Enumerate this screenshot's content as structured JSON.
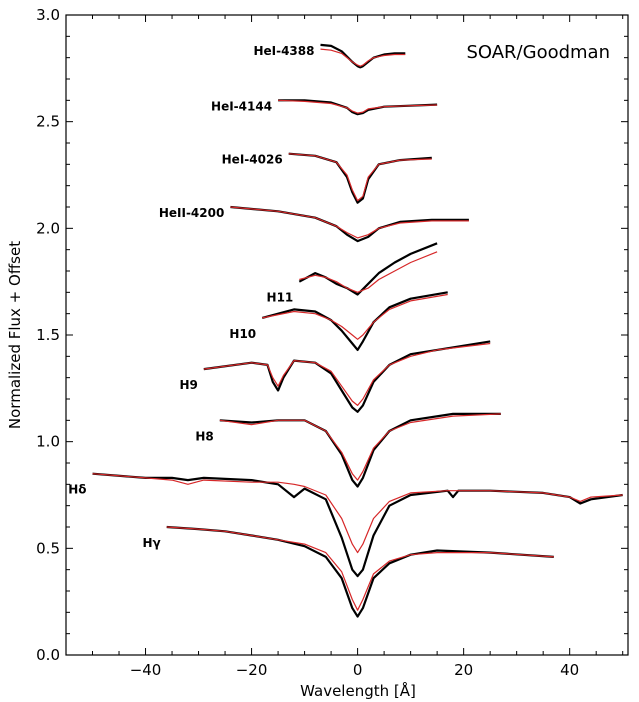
{
  "chart_data": {
    "type": "line",
    "title": "",
    "annotation": "SOAR/Goodman",
    "xlabel": "Wavelength [Å]",
    "ylabel": "Normalized Flux + Offset",
    "xlim": [
      -55,
      51
    ],
    "ylim": [
      0.0,
      3.0
    ],
    "xticks": [
      -40,
      -20,
      0,
      20,
      40
    ],
    "xtick_labels": [
      "−40",
      "−20",
      "0",
      "20",
      "40"
    ],
    "yticks": [
      0.0,
      0.5,
      1.0,
      1.5,
      2.0,
      2.5,
      3.0
    ],
    "ytick_labels": [
      "0.0",
      "0.5",
      "1.0",
      "1.5",
      "2.0",
      "2.5",
      "3.0"
    ],
    "grid": false,
    "series": [
      {
        "name": "HeI-4388",
        "label": "HeI-4388",
        "offset": 2.84,
        "x": [
          -7,
          -5,
          -3,
          -1,
          0,
          0.5,
          1,
          2,
          3,
          5,
          7,
          9
        ],
        "observed": [
          2.86,
          2.855,
          2.83,
          2.78,
          2.76,
          2.755,
          2.76,
          2.78,
          2.8,
          2.815,
          2.82,
          2.82
        ],
        "model": [
          2.84,
          2.835,
          2.82,
          2.78,
          2.765,
          2.76,
          2.765,
          2.785,
          2.8,
          2.81,
          2.815,
          2.815
        ]
      },
      {
        "name": "HeI-4144",
        "label": "HeI-4144",
        "offset": 2.6,
        "x": [
          -15,
          -10,
          -5,
          -2,
          -1,
          0,
          1,
          2,
          5,
          10,
          15
        ],
        "observed": [
          2.6,
          2.6,
          2.59,
          2.565,
          2.545,
          2.535,
          2.54,
          2.555,
          2.57,
          2.575,
          2.58
        ],
        "model": [
          2.6,
          2.595,
          2.585,
          2.565,
          2.55,
          2.54,
          2.545,
          2.56,
          2.57,
          2.575,
          2.578
        ]
      },
      {
        "name": "HeI-4026",
        "label": "HeI-4026",
        "offset": 2.35,
        "x": [
          -13,
          -8,
          -4,
          -2,
          -1,
          0,
          1,
          2,
          4,
          8,
          14
        ],
        "observed": [
          2.35,
          2.34,
          2.31,
          2.24,
          2.17,
          2.12,
          2.14,
          2.23,
          2.3,
          2.32,
          2.33
        ],
        "model": [
          2.35,
          2.34,
          2.31,
          2.25,
          2.18,
          2.13,
          2.15,
          2.24,
          2.3,
          2.32,
          2.325
        ]
      },
      {
        "name": "HeII-4200",
        "label": "HeII-4200",
        "offset": 2.1,
        "x": [
          -24,
          -15,
          -8,
          -4,
          -2,
          0,
          2,
          4,
          8,
          14,
          21
        ],
        "observed": [
          2.1,
          2.08,
          2.05,
          2.01,
          1.97,
          1.94,
          1.96,
          2.0,
          2.03,
          2.04,
          2.04
        ],
        "model": [
          2.1,
          2.08,
          2.05,
          2.01,
          1.98,
          1.955,
          1.97,
          2.0,
          2.025,
          2.035,
          2.035
        ]
      },
      {
        "name": "H11",
        "label": "H11",
        "offset": 1.75,
        "x": [
          -11,
          -8,
          -6,
          -4,
          -2,
          0,
          2,
          4,
          7,
          10,
          15
        ],
        "observed": [
          1.75,
          1.79,
          1.77,
          1.74,
          1.72,
          1.69,
          1.74,
          1.79,
          1.84,
          1.88,
          1.93
        ],
        "model": [
          1.76,
          1.78,
          1.77,
          1.75,
          1.72,
          1.7,
          1.72,
          1.76,
          1.8,
          1.84,
          1.89
        ]
      },
      {
        "name": "H10",
        "label": "H10",
        "offset": 1.6,
        "x": [
          -18,
          -12,
          -8,
          -5,
          -3,
          -1,
          0,
          1,
          3,
          6,
          10,
          17
        ],
        "observed": [
          1.58,
          1.62,
          1.61,
          1.57,
          1.52,
          1.46,
          1.43,
          1.47,
          1.56,
          1.63,
          1.67,
          1.7
        ],
        "model": [
          1.58,
          1.61,
          1.6,
          1.57,
          1.54,
          1.5,
          1.48,
          1.5,
          1.56,
          1.62,
          1.66,
          1.69
        ]
      },
      {
        "name": "H9",
        "label": "H9",
        "offset": 1.35,
        "x": [
          -29,
          -20,
          -17,
          -16,
          -15,
          -14,
          -12,
          -8,
          -5,
          -3,
          -1,
          0,
          1,
          3,
          6,
          10,
          15,
          25
        ],
        "observed": [
          1.34,
          1.37,
          1.36,
          1.28,
          1.24,
          1.3,
          1.38,
          1.37,
          1.32,
          1.24,
          1.16,
          1.14,
          1.17,
          1.28,
          1.36,
          1.41,
          1.43,
          1.47
        ],
        "model": [
          1.34,
          1.37,
          1.36,
          1.3,
          1.26,
          1.31,
          1.38,
          1.37,
          1.33,
          1.26,
          1.19,
          1.17,
          1.2,
          1.29,
          1.36,
          1.4,
          1.43,
          1.46
        ]
      },
      {
        "name": "H8",
        "label": "H8",
        "offset": 1.1,
        "x": [
          -26,
          -20,
          -15,
          -10,
          -6,
          -3,
          -1,
          0,
          1,
          3,
          6,
          10,
          18,
          27
        ],
        "observed": [
          1.1,
          1.09,
          1.1,
          1.1,
          1.05,
          0.94,
          0.82,
          0.79,
          0.83,
          0.96,
          1.05,
          1.1,
          1.13,
          1.13
        ],
        "model": [
          1.1,
          1.08,
          1.1,
          1.1,
          1.05,
          0.95,
          0.85,
          0.82,
          0.86,
          0.97,
          1.05,
          1.09,
          1.12,
          1.13
        ],
        "scale": 1
      },
      {
        "name": "Hδ",
        "label": "Hδ",
        "offset": 0.8,
        "x": [
          -50,
          -40,
          -35,
          -32,
          -29,
          -20,
          -15,
          -12,
          -10,
          -6,
          -3,
          -1,
          0,
          1,
          3,
          6,
          10,
          17,
          18,
          19,
          25,
          35,
          40,
          42,
          44,
          50
        ],
        "observed": [
          0.85,
          0.83,
          0.83,
          0.82,
          0.83,
          0.82,
          0.8,
          0.74,
          0.78,
          0.73,
          0.55,
          0.4,
          0.37,
          0.4,
          0.56,
          0.7,
          0.75,
          0.77,
          0.74,
          0.77,
          0.77,
          0.76,
          0.74,
          0.71,
          0.73,
          0.75
        ],
        "model": [
          0.85,
          0.83,
          0.82,
          0.8,
          0.82,
          0.81,
          0.81,
          0.8,
          0.79,
          0.75,
          0.64,
          0.52,
          0.48,
          0.52,
          0.64,
          0.72,
          0.76,
          0.77,
          0.77,
          0.77,
          0.77,
          0.76,
          0.74,
          0.72,
          0.74,
          0.75
        ]
      },
      {
        "name": "Hγ",
        "label": "Hγ",
        "offset": 0.58,
        "x": [
          -36,
          -30,
          -25,
          -20,
          -15,
          -10,
          -6,
          -3,
          -1,
          0,
          1,
          3,
          6,
          10,
          15,
          25,
          37
        ],
        "observed": [
          0.6,
          0.59,
          0.58,
          0.56,
          0.54,
          0.51,
          0.46,
          0.36,
          0.22,
          0.18,
          0.22,
          0.36,
          0.43,
          0.47,
          0.49,
          0.48,
          0.46
        ],
        "model": [
          0.6,
          0.59,
          0.58,
          0.56,
          0.54,
          0.52,
          0.48,
          0.39,
          0.26,
          0.21,
          0.26,
          0.38,
          0.44,
          0.47,
          0.48,
          0.48,
          0.46
        ]
      }
    ],
    "colors": {
      "observed": "#000000",
      "model": "#d62728"
    }
  }
}
